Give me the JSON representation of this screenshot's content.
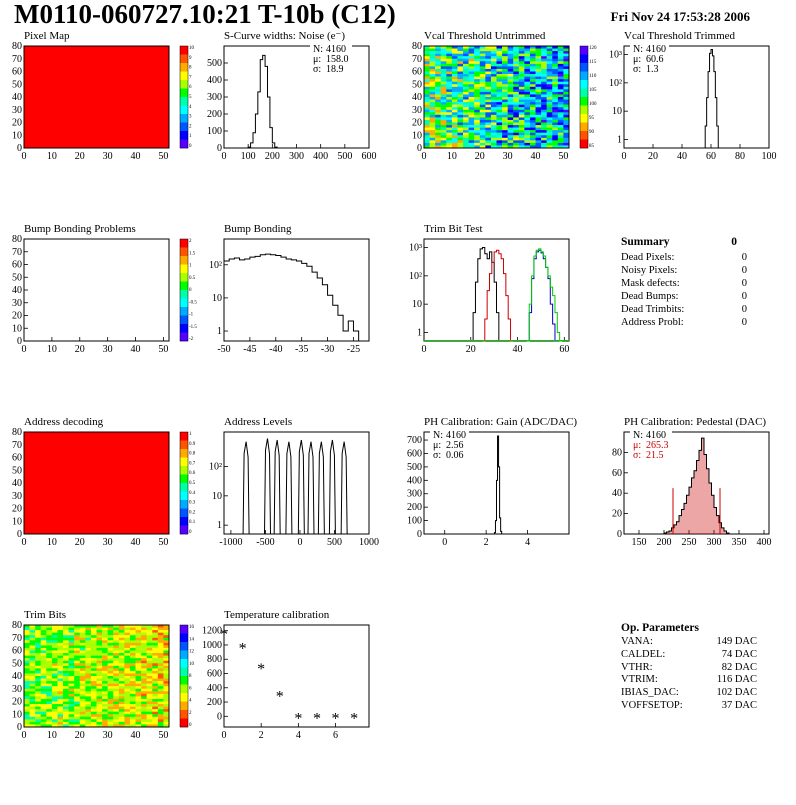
{
  "header": {
    "title": "M0110-060727.10:21 T-10b (C12)",
    "date": "Fri Nov 24 17:53:28 2006"
  },
  "colors": {
    "pixel_map_fill": "#ff0000",
    "trim_curve_black": "#000000",
    "trim_curve_red": "#cc0000",
    "trim_curve_green": "#00cc00",
    "trim_curve_blue": "#0000cc",
    "pedestal_fill": "#cc0000"
  },
  "summary": {
    "title": "Summary",
    "total": "0",
    "rows": [
      {
        "label": "Dead Pixels:",
        "value": "0"
      },
      {
        "label": "Noisy Pixels:",
        "value": "0"
      },
      {
        "label": "Mask defects:",
        "value": "0"
      },
      {
        "label": "Dead Bumps:",
        "value": "0"
      },
      {
        "label": "Dead Trimbits:",
        "value": "0"
      },
      {
        "label": "Address Probl:",
        "value": "0"
      }
    ]
  },
  "op_params": {
    "title": "Op. Parameters",
    "rows": [
      {
        "label": "VANA:",
        "value": "149 DAC"
      },
      {
        "label": "CALDEL:",
        "value": "74 DAC"
      },
      {
        "label": "VTHR:",
        "value": "82 DAC"
      },
      {
        "label": "VTRIM:",
        "value": "116 DAC"
      },
      {
        "label": "IBIAS_DAC:",
        "value": "102 DAC"
      },
      {
        "label": "VOFFSETOP:",
        "value": "37 DAC"
      }
    ]
  },
  "chart_data": [
    {
      "id": "pixel-map",
      "type": "heatmap",
      "title": "Pixel Map",
      "xlim": [
        0,
        52
      ],
      "ylim": [
        0,
        80
      ],
      "xticks": [
        0,
        10,
        20,
        30,
        40,
        50
      ],
      "yticks": [
        0,
        10,
        20,
        30,
        40,
        50,
        60,
        70,
        80
      ],
      "uniform_value": 10,
      "palette": [
        "#ff0000",
        "#ff5500",
        "#ffaa00",
        "#ffff00",
        "#aaff00",
        "#00ff00",
        "#00ffaa",
        "#00ffff",
        "#00aaff",
        "#0055ff",
        "#0000ff",
        "#5500ff"
      ],
      "zticks": [
        "10",
        "9",
        "8",
        "7",
        "6",
        "5",
        "4",
        "3",
        "2",
        "1",
        "0"
      ]
    },
    {
      "id": "scurve-noise",
      "type": "histogram",
      "title": "S-Curve widths: Noise (e⁻)",
      "xlim": [
        0,
        600
      ],
      "ylim": [
        0,
        600
      ],
      "xticks": [
        0,
        100,
        200,
        300,
        400,
        500,
        600
      ],
      "yticks": [
        0,
        100,
        200,
        300,
        400,
        500
      ],
      "bin_edges": [
        100,
        110,
        120,
        130,
        140,
        150,
        160,
        170,
        180,
        190,
        200,
        210,
        220
      ],
      "values": [
        5,
        30,
        90,
        200,
        330,
        520,
        545,
        480,
        300,
        120,
        30,
        5
      ],
      "stats": [
        {
          "label": "N:",
          "value": "4160"
        },
        {
          "label": "μ:",
          "value": "158.0"
        },
        {
          "label": "σ:",
          "value": "18.9"
        }
      ]
    },
    {
      "id": "vcal-untrimmed",
      "type": "heatmap",
      "title": "Vcal Threshold Untrimmed",
      "xlim": [
        0,
        52
      ],
      "ylim": [
        0,
        80
      ],
      "xticks": [
        0,
        10,
        20,
        30,
        40,
        50
      ],
      "yticks": [
        0,
        10,
        20,
        30,
        40,
        50,
        60,
        70,
        80
      ],
      "palette": [
        "#5500ff",
        "#0000ff",
        "#0055ff",
        "#00aaff",
        "#00ffff",
        "#00ffaa",
        "#00ff00",
        "#aaff00",
        "#ffff00",
        "#ffaa00",
        "#ff5500",
        "#ff0000"
      ],
      "zticks": [
        "120",
        "115",
        "110",
        "105",
        "100",
        "95",
        "90",
        "85"
      ]
    },
    {
      "id": "vcal-trimmed",
      "type": "histogram",
      "title": "Vcal Threshold Trimmed",
      "xlim": [
        0,
        100
      ],
      "ylim_log": [
        0.5,
        2000
      ],
      "log": true,
      "xticks": [
        0,
        20,
        40,
        60,
        80,
        100
      ],
      "yticks": [
        1,
        10,
        100,
        1000
      ],
      "ytick_labels": [
        "1",
        "10",
        "10²",
        "10³"
      ],
      "bin_edges": [
        56,
        57,
        58,
        59,
        60,
        61,
        62,
        63,
        64,
        65
      ],
      "values": [
        3,
        30,
        250,
        1100,
        1500,
        900,
        250,
        30,
        3
      ],
      "stats": [
        {
          "label": "N:",
          "value": "4160"
        },
        {
          "label": "μ:",
          "value": "60.6"
        },
        {
          "label": "σ:",
          "value": "1.3"
        }
      ]
    },
    {
      "id": "bump-bonding-problems",
      "type": "heatmap",
      "title": "Bump Bonding Problems",
      "xlim": [
        0,
        52
      ],
      "ylim": [
        0,
        80
      ],
      "xticks": [
        0,
        10,
        20,
        30,
        40,
        50
      ],
      "yticks": [
        0,
        10,
        20,
        30,
        40,
        50,
        60,
        70,
        80
      ],
      "empty": true,
      "palette": [
        "#ff0000",
        "#ff5500",
        "#ffaa00",
        "#ffff00",
        "#aaff00",
        "#00ff00",
        "#00ffaa",
        "#00ffff",
        "#00aaff",
        "#0055ff",
        "#0000ff",
        "#5500ff"
      ],
      "zticks": [
        "2",
        "1.5",
        "1",
        "0.5",
        "0",
        "-0.5",
        "-1",
        "-1.5",
        "-2"
      ]
    },
    {
      "id": "bump-bonding",
      "type": "histogram",
      "title": "Bump Bonding",
      "xlim": [
        -50,
        -22
      ],
      "ylim_log": [
        0.5,
        600
      ],
      "log": true,
      "xticks": [
        -50,
        -45,
        -40,
        -35,
        -30,
        -25
      ],
      "yticks": [
        1,
        10,
        100
      ],
      "ytick_labels": [
        "1",
        "10",
        "10²"
      ],
      "bin_edges": [
        -50,
        -49,
        -48,
        -47,
        -46,
        -45,
        -44,
        -43,
        -42,
        -41,
        -40,
        -39,
        -38,
        -37,
        -36,
        -35,
        -34,
        -33,
        -32,
        -31,
        -30,
        -29,
        -28,
        -27,
        -26,
        -25,
        -24
      ],
      "values": [
        130,
        150,
        160,
        140,
        150,
        170,
        180,
        200,
        210,
        200,
        190,
        170,
        150,
        140,
        130,
        110,
        90,
        60,
        40,
        25,
        12,
        6,
        3,
        1,
        2,
        1
      ],
      "stats": []
    },
    {
      "id": "trim-bit-test",
      "type": "line",
      "title": "Trim Bit Test",
      "xlim": [
        0,
        62
      ],
      "ylim_log": [
        0.5,
        2000
      ],
      "log": true,
      "xticks": [
        0,
        20,
        40,
        60
      ],
      "yticks": [
        1,
        10,
        100,
        1000
      ],
      "ytick_labels": [
        "1",
        "10",
        "10²",
        "10³"
      ],
      "series": [
        {
          "color": "#000000",
          "x": [
            20,
            21,
            22,
            23,
            24,
            25,
            26,
            27,
            28,
            29,
            30,
            31,
            32
          ],
          "values": [
            0,
            5,
            60,
            400,
            900,
            1000,
            600,
            400,
            700,
            300,
            60,
            5,
            0
          ]
        },
        {
          "color": "#cc0000",
          "x": [
            25,
            26,
            27,
            28,
            29,
            30,
            31,
            32,
            33,
            34,
            35,
            36,
            37
          ],
          "values": [
            0,
            3,
            30,
            120,
            300,
            700,
            800,
            600,
            400,
            120,
            20,
            3,
            0
          ]
        },
        {
          "color": "#0000cc",
          "x": [
            44,
            45,
            46,
            47,
            48,
            49,
            50,
            51,
            52,
            53,
            54,
            55,
            56
          ],
          "values": [
            0,
            5,
            80,
            400,
            700,
            800,
            650,
            400,
            200,
            80,
            10,
            2,
            0
          ]
        },
        {
          "color": "#00cc00",
          "x": [
            44,
            45,
            46,
            47,
            48,
            49,
            50,
            51,
            52,
            53,
            54,
            55,
            56,
            57,
            58
          ],
          "values": [
            0,
            10,
            100,
            500,
            800,
            900,
            700,
            500,
            200,
            100,
            40,
            20,
            5,
            1,
            0
          ]
        }
      ]
    },
    {
      "id": "address-decoding",
      "type": "heatmap",
      "title": "Address decoding",
      "xlim": [
        0,
        52
      ],
      "ylim": [
        0,
        80
      ],
      "xticks": [
        0,
        10,
        20,
        30,
        40,
        50
      ],
      "yticks": [
        0,
        10,
        20,
        30,
        40,
        50,
        60,
        70,
        80
      ],
      "uniform_value": 1,
      "palette": [
        "#ff0000",
        "#ff5500",
        "#ffaa00",
        "#ffff00",
        "#aaff00",
        "#00ff00",
        "#00ffaa",
        "#00ffff",
        "#00aaff",
        "#0055ff",
        "#0000ff",
        "#5500ff"
      ],
      "zticks": [
        "1",
        "0.9",
        "0.8",
        "0.7",
        "0.6",
        "0.5",
        "0.4",
        "0.3",
        "0.2",
        "0.1",
        "0"
      ]
    },
    {
      "id": "address-levels",
      "type": "histogram",
      "title": "Address Levels",
      "xlim": [
        -1100,
        1000
      ],
      "ylim_log": [
        0.5,
        1500
      ],
      "log": true,
      "xticks": [
        -1000,
        -500,
        0,
        500,
        1000
      ],
      "yticks": [
        1,
        10,
        100
      ],
      "ytick_labels": [
        "1",
        "10",
        "10²"
      ],
      "peaks": [
        -780,
        -470,
        -330,
        -160,
        20,
        160,
        310,
        470,
        640
      ],
      "peak_heights": [
        700,
        900,
        800,
        700,
        800,
        700,
        700,
        800,
        700
      ],
      "stats": []
    },
    {
      "id": "ph-gain",
      "type": "histogram",
      "title": "PH Calibration: Gain (ADC/DAC)",
      "xlim": [
        -1,
        6
      ],
      "ylim": [
        0,
        760
      ],
      "xticks": [
        0,
        2,
        4
      ],
      "yticks": [
        0,
        100,
        200,
        300,
        400,
        500,
        600,
        700
      ],
      "bin_edges": [
        2.4,
        2.45,
        2.5,
        2.55,
        2.6,
        2.65,
        2.7,
        2.75
      ],
      "values": [
        10,
        100,
        400,
        730,
        500,
        120,
        20
      ],
      "stats": [
        {
          "label": "N:",
          "value": "4160"
        },
        {
          "label": "μ:",
          "value": "2.56"
        },
        {
          "label": "σ:",
          "value": "0.06"
        }
      ]
    },
    {
      "id": "ph-pedestal",
      "type": "histogram",
      "title": "PH Calibration: Pedestal (DAC)",
      "xlim": [
        120,
        410
      ],
      "ylim": [
        0,
        100
      ],
      "xticks": [
        150,
        200,
        250,
        300,
        350,
        400
      ],
      "yticks": [
        0,
        20,
        40,
        60,
        80
      ],
      "bin_edges": [
        200,
        205,
        210,
        215,
        220,
        225,
        230,
        235,
        240,
        245,
        250,
        255,
        260,
        265,
        270,
        275,
        280,
        285,
        290,
        295,
        300,
        305,
        310,
        315,
        320,
        325,
        330
      ],
      "values": [
        1,
        2,
        3,
        6,
        9,
        12,
        18,
        24,
        30,
        38,
        46,
        55,
        62,
        72,
        82,
        94,
        78,
        64,
        50,
        38,
        26,
        18,
        11,
        6,
        3,
        1
      ],
      "cut_lines": [
        218,
        312
      ],
      "stats": [
        {
          "label": "N:",
          "value": "4160"
        },
        {
          "label": "μ:",
          "value": "265.3",
          "color": "#cc0000"
        },
        {
          "label": "σ:",
          "value": "21.5",
          "color": "#cc0000"
        }
      ]
    },
    {
      "id": "trim-bits",
      "type": "heatmap",
      "title": "Trim Bits",
      "xlim": [
        0,
        52
      ],
      "ylim": [
        0,
        80
      ],
      "xticks": [
        0,
        10,
        20,
        30,
        40,
        50
      ],
      "yticks": [
        0,
        10,
        20,
        30,
        40,
        50,
        60,
        70,
        80
      ],
      "palette": [
        "#5500ff",
        "#0000ff",
        "#0055ff",
        "#00aaff",
        "#00ffff",
        "#00ffaa",
        "#00ff00",
        "#aaff00",
        "#ffff00",
        "#ffaa00",
        "#ff5500",
        "#ff0000"
      ],
      "zticks": [
        "16",
        "14",
        "12",
        "10",
        "8",
        "6",
        "4",
        "2",
        "0"
      ]
    },
    {
      "id": "temperature-calibration",
      "type": "scatter",
      "title": "Temperature calibration",
      "xlim": [
        0,
        7.8
      ],
      "ylim": [
        -150,
        1280
      ],
      "xticks": [
        0,
        2,
        4,
        6
      ],
      "yticks": [
        0,
        200,
        400,
        600,
        800,
        1000,
        1200
      ],
      "x": [
        0,
        1,
        2,
        3,
        4,
        5,
        6,
        7
      ],
      "values": [
        1150,
        950,
        660,
        280,
        -30,
        -30,
        -30,
        -30
      ]
    }
  ]
}
